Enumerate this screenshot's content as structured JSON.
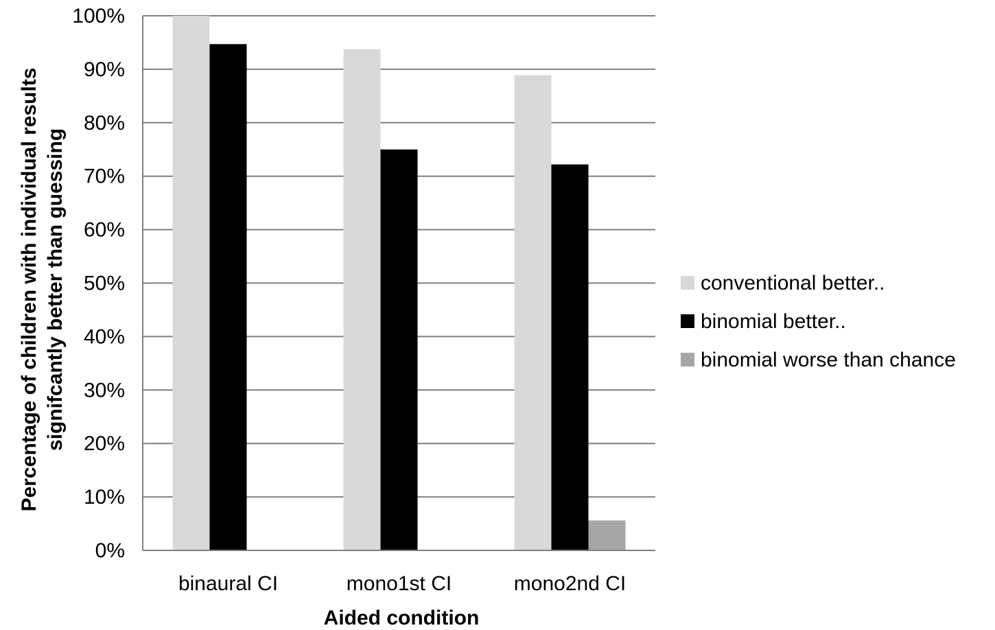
{
  "chart_data": {
    "type": "bar",
    "title": "",
    "xlabel": "Aided condition",
    "ylabel_lines": [
      "Percentage of children with individual results",
      "signifcantly better than guessing"
    ],
    "categories": [
      "binaural CI",
      "mono1st CI",
      "mono2nd CI"
    ],
    "series": [
      {
        "name": "conventional better..",
        "color": "#d9d9d9",
        "values": [
          100,
          93.75,
          88.9
        ]
      },
      {
        "name": "binomial better..",
        "color": "#000000",
        "values": [
          94.7,
          75.0,
          72.2
        ]
      },
      {
        "name": "binomial worse than chance",
        "color": "#a6a6a6",
        "values": [
          0,
          0,
          5.6
        ]
      }
    ],
    "ylim": [
      0,
      100
    ],
    "yticks": [
      0,
      10,
      20,
      30,
      40,
      50,
      60,
      70,
      80,
      90,
      100
    ],
    "ytick_labels": [
      "0%",
      "10%",
      "20%",
      "30%",
      "40%",
      "50%",
      "60%",
      "70%",
      "80%",
      "90%",
      "100%"
    ],
    "grid": true,
    "legend_position": "right"
  }
}
